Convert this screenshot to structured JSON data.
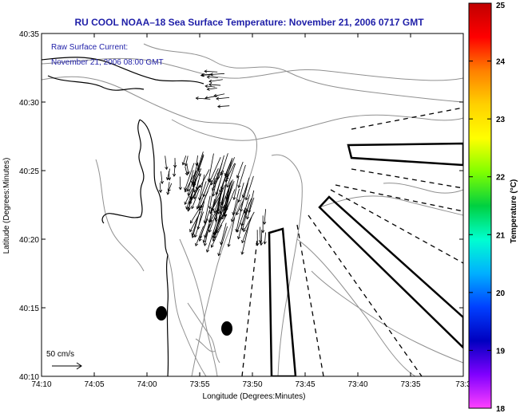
{
  "title": "RU COOL  NOAA–18  Sea Surface Temperature:  November 21, 2006 0717 GMT",
  "annotation": {
    "line1": "Raw Surface Current:",
    "line2": "November 21, 2006 08:00 GMT"
  },
  "scale_label": "50 cm/s",
  "x_axis": {
    "label": "Longitude (Degrees:Minutes)",
    "ticks": [
      "74:10",
      "74:05",
      "74:00",
      "73:55",
      "73:50",
      "73:45",
      "73:40",
      "73:35",
      "73:3"
    ]
  },
  "y_axis": {
    "label": "Latitude (Degrees:Minutes)",
    "ticks": [
      "40:35",
      "40:30",
      "40:25",
      "40:20",
      "40:15",
      "40:10"
    ]
  },
  "colorbar": {
    "label": "Temperature (°C)",
    "ticks": [
      "25",
      "24",
      "23",
      "22",
      "21",
      "20",
      "19",
      "18"
    ],
    "colors": [
      "#c00000",
      "#ff0000",
      "#ff8000",
      "#ffd000",
      "#ffff00",
      "#80ff00",
      "#00d040",
      "#00ffd0",
      "#00b0ff",
      "#0040ff",
      "#0000c0",
      "#8000ff",
      "#ff40ff"
    ]
  },
  "colors": {
    "title": "#1f1fa8",
    "annotation": "#1f1fa8",
    "contour": "#909090",
    "coast": "#000000"
  }
}
